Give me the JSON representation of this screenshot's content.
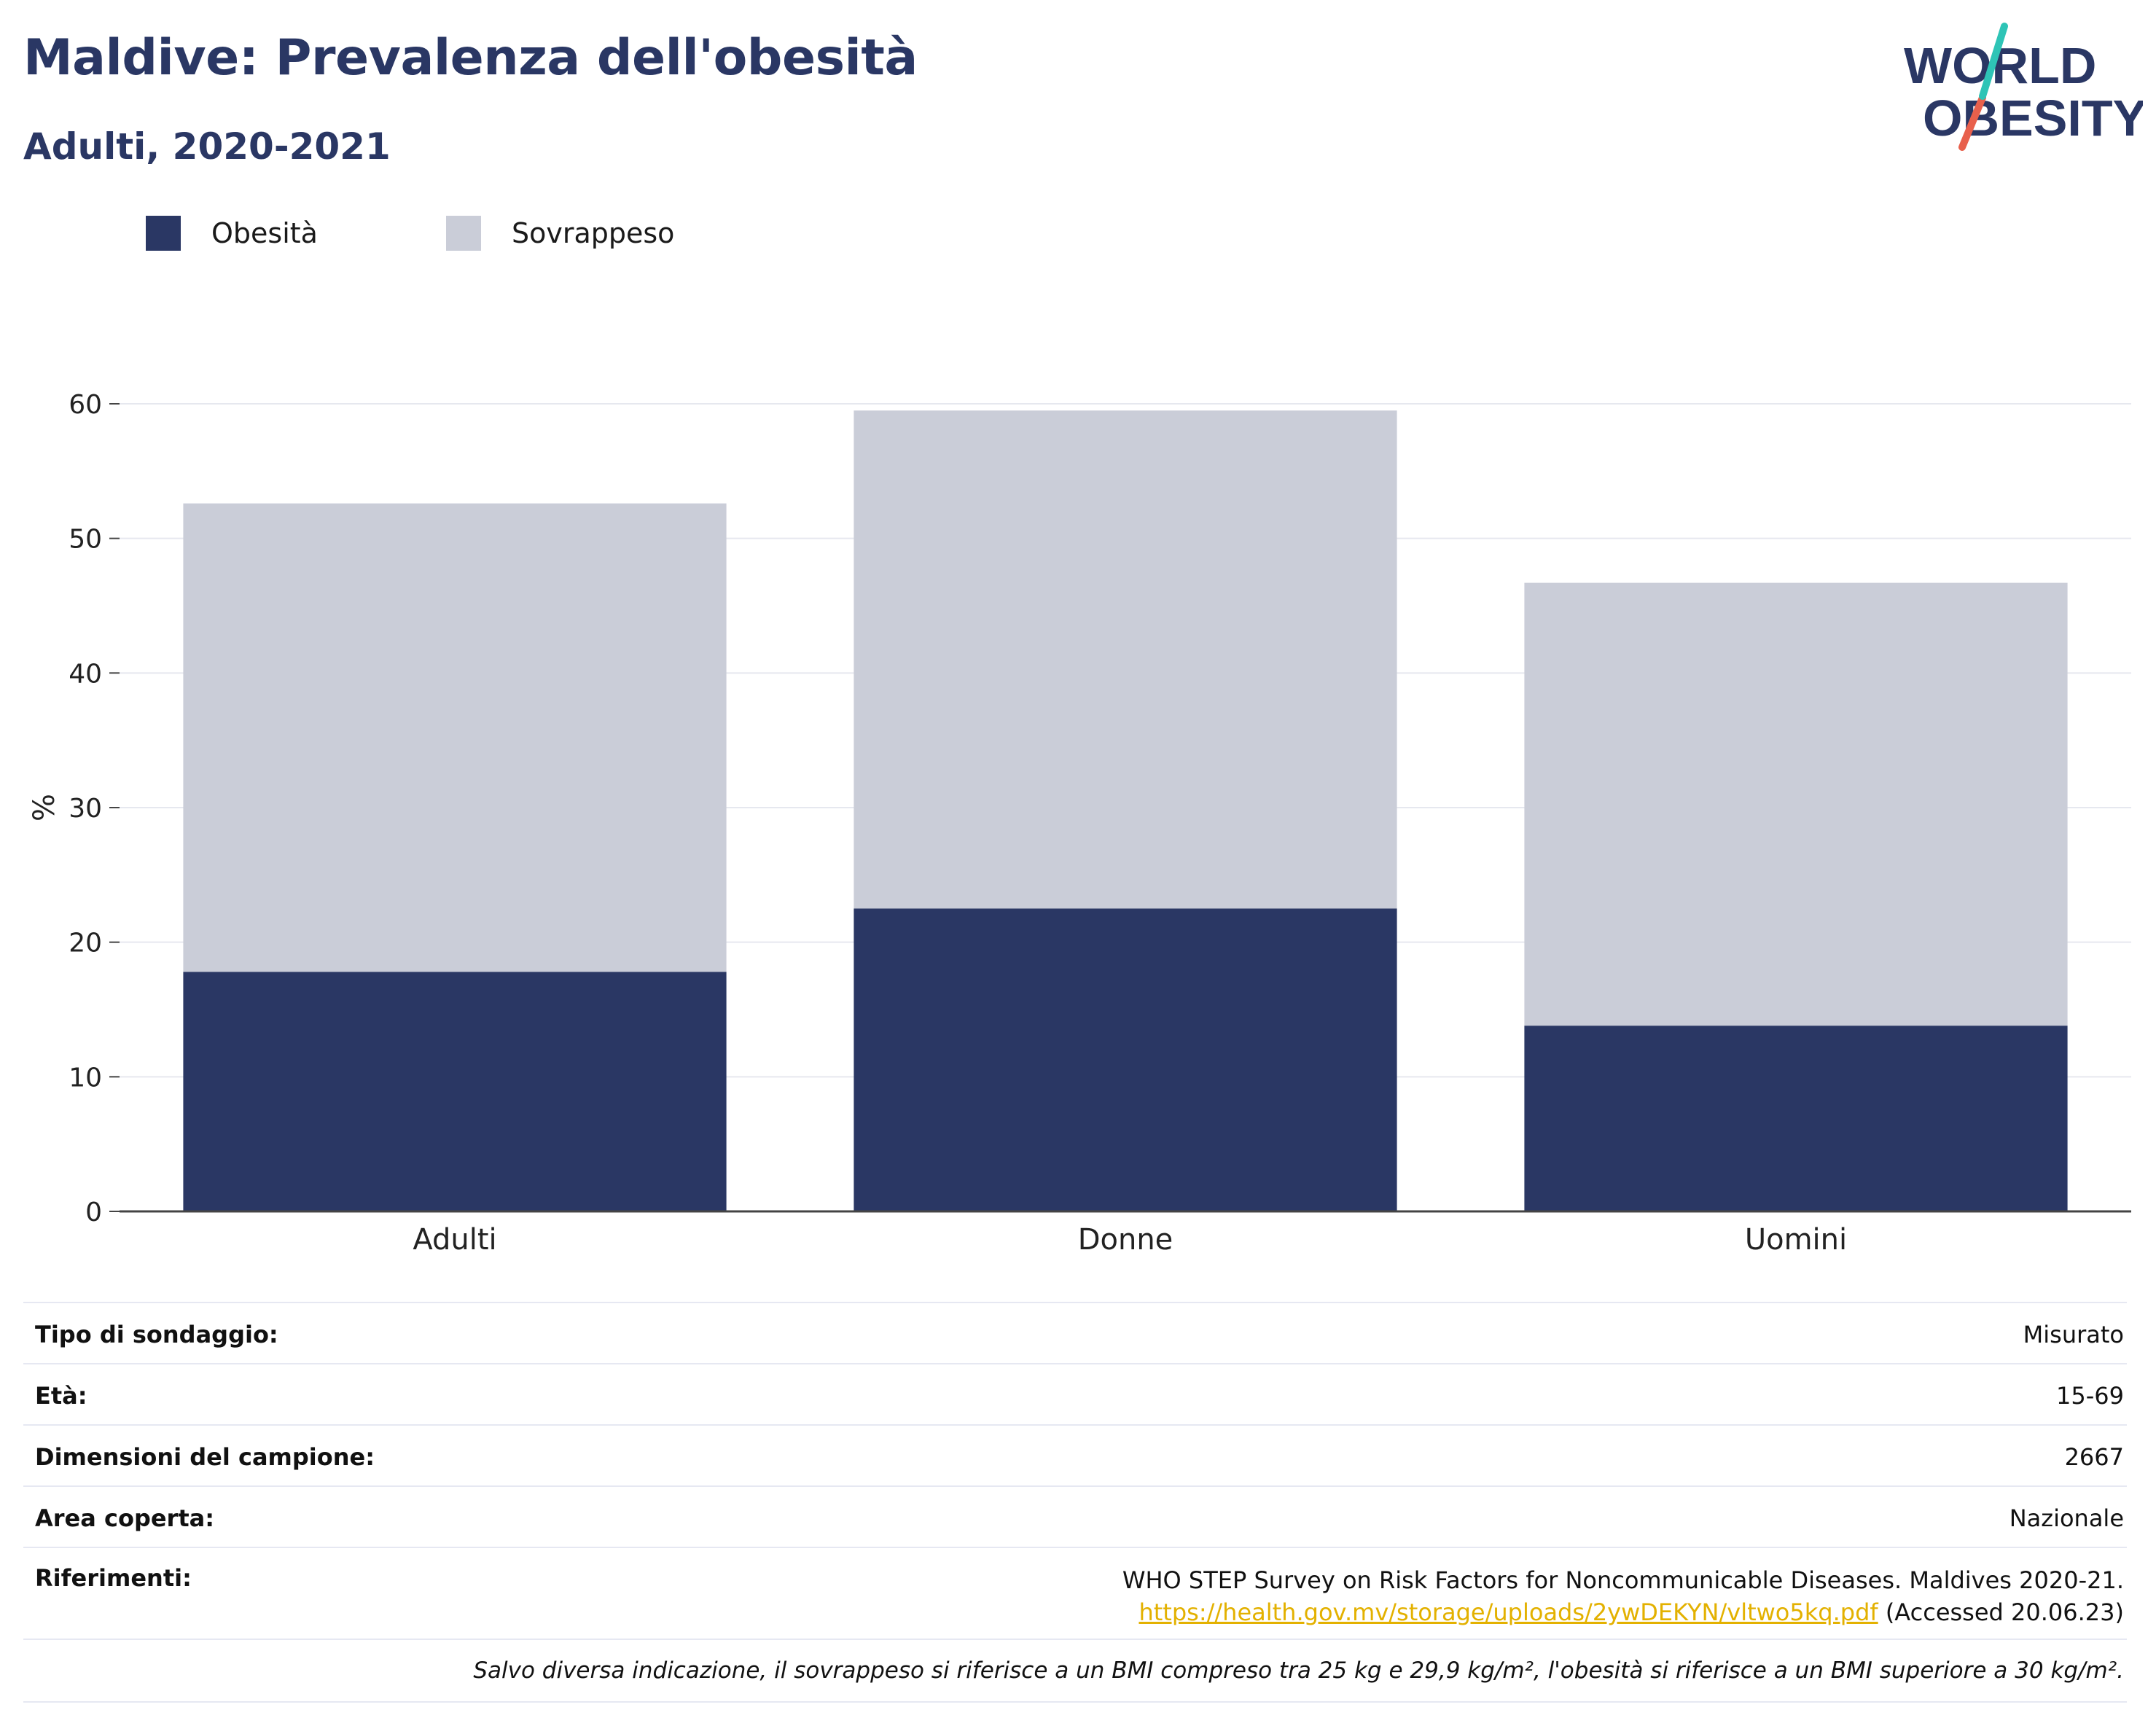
{
  "header": {
    "title": "Maldive: Prevalenza dell'obesità",
    "subtitle": "Adulti, 2020-2021"
  },
  "logo": {
    "line1": "WORLD",
    "line2": "OBESITY",
    "colors": {
      "text": "#2a3764",
      "slash_top": "#2ec4b6",
      "slash_bottom": "#e8604c"
    }
  },
  "colors": {
    "obesity": "#2a3764",
    "overweight": "#cacdd8",
    "grid": "#e6e8ef",
    "axis": "#444444"
  },
  "chart_data": {
    "type": "bar",
    "stacked": true,
    "categories": [
      "Adulti",
      "Donne",
      "Uomini"
    ],
    "series": [
      {
        "name": "Obesità",
        "values": [
          17.8,
          22.5,
          13.8
        ],
        "color": "#2a3764"
      },
      {
        "name": "Sovrappeso",
        "values": [
          34.8,
          37.0,
          32.9
        ],
        "color": "#cacdd8"
      }
    ],
    "ylabel": "%",
    "ylim": [
      0,
      60
    ],
    "yticks": [
      0,
      10,
      20,
      30,
      40,
      50,
      60
    ],
    "grid": true,
    "legend_position": "top-left"
  },
  "info": {
    "rows": [
      {
        "label": "Tipo di sondaggio:",
        "value": "Misurato"
      },
      {
        "label": "Età:",
        "value": "15-69"
      },
      {
        "label": "Dimensioni del campione:",
        "value": "2667"
      },
      {
        "label": "Area coperta:",
        "value": "Nazionale"
      }
    ],
    "references": {
      "label": "Riferimenti:",
      "line1": "WHO STEP Survey on Risk Factors for Noncommunicable Diseases. Maldives 2020-21.",
      "link": "https://health.gov.mv/storage/uploads/2ywDEKYN/vltwo5kq.pdf",
      "accessed": " (Accessed 20.06.23)"
    },
    "note": "Salvo diversa indicazione, il sovrappeso si riferisce a un BMI compreso tra 25 kg e 29,9 kg/m², l'obesità si riferisce a un BMI superiore a 30 kg/m²."
  }
}
